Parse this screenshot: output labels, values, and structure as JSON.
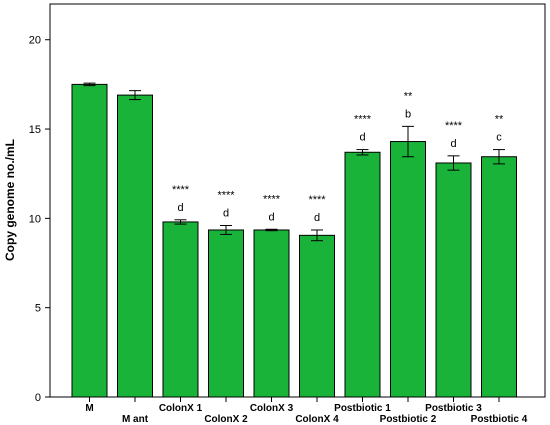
{
  "chart_data": {
    "type": "bar",
    "title": "",
    "xlabel": "",
    "ylabel": "Copy genome no./mL",
    "ylim": [
      0,
      22
    ],
    "yticks": [
      0,
      5,
      10,
      15,
      20
    ],
    "grid": false,
    "legend": "none",
    "bar_color": "#1ab33a",
    "categories": [
      "M",
      "M ant",
      "ColonX 1",
      "ColonX 2",
      "ColonX 3",
      "ColonX 4",
      "Postbiotic 1",
      "Postbiotic 2",
      "Postbiotic 3",
      "Postbiotic 4"
    ],
    "values": [
      17.5,
      16.9,
      9.8,
      9.35,
      9.35,
      9.05,
      13.7,
      14.3,
      13.1,
      13.45
    ],
    "errors": [
      0.07,
      0.25,
      0.12,
      0.25,
      0.04,
      0.3,
      0.15,
      0.85,
      0.4,
      0.4
    ],
    "significance": [
      "",
      "",
      "****",
      "****",
      "****",
      "****",
      "****",
      "**",
      "****",
      "**"
    ],
    "letters": [
      "",
      "",
      "d",
      "d",
      "d",
      "d",
      "d",
      "b",
      "d",
      "c"
    ]
  }
}
